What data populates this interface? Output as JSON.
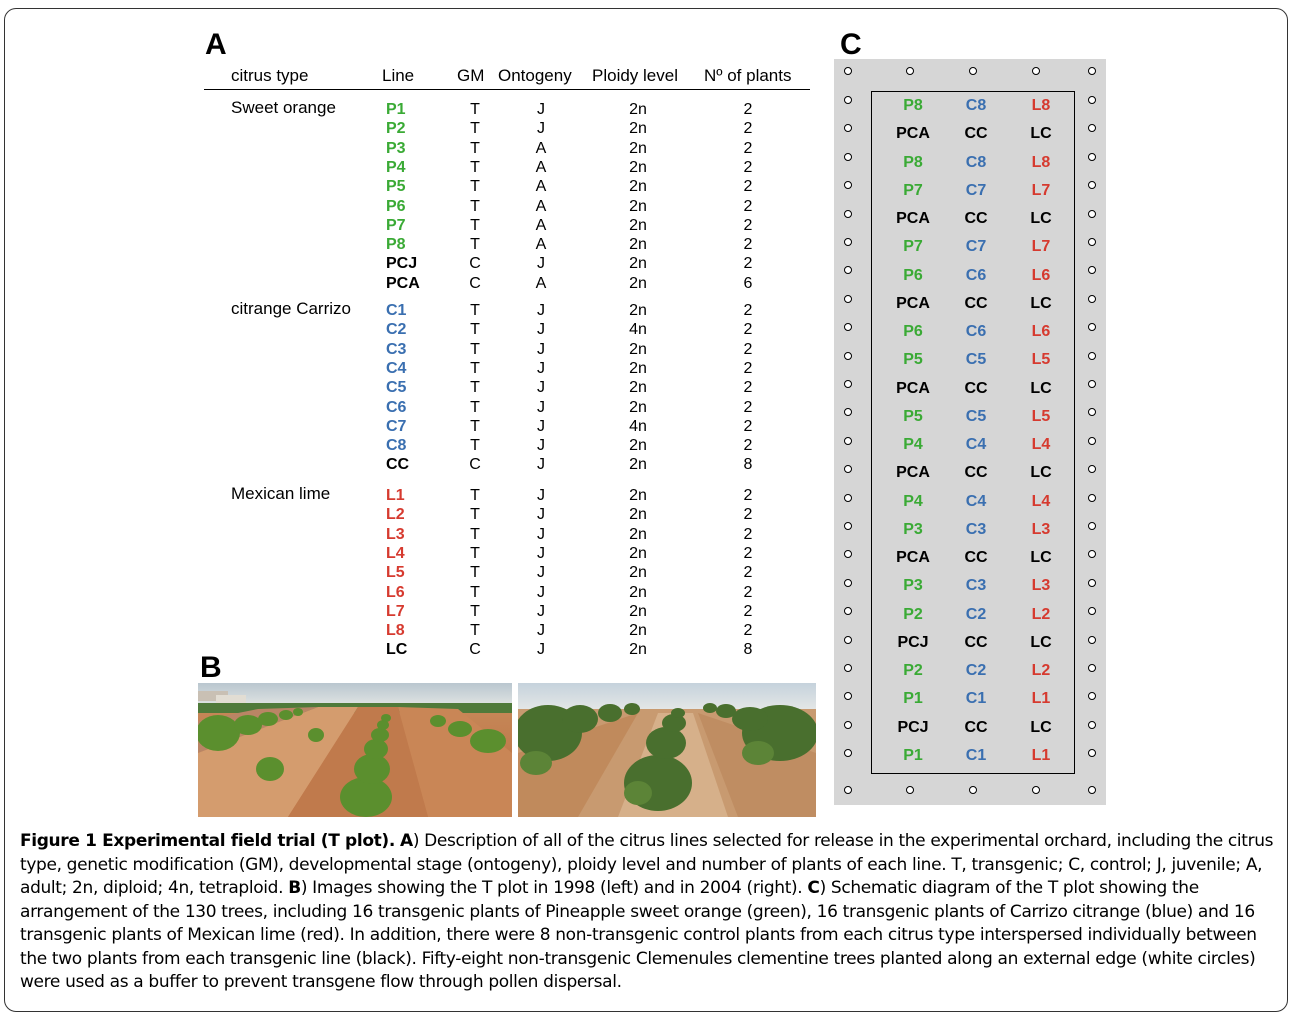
{
  "panels": {
    "a": "A",
    "b": "B",
    "c": "C"
  },
  "colors": {
    "sweet_orange": "#3aaa35",
    "carrizo": "#3a6fb0",
    "lime": "#d63a2f",
    "control": "#000000",
    "plot_bg": "#d6d6d6"
  },
  "table": {
    "headers": [
      "citrus type",
      "Line",
      "GM",
      "Ontogeny",
      "Ploidy level",
      "Nº of plants"
    ],
    "groups": [
      {
        "citrus_type": "Sweet orange",
        "color": "sweet_orange",
        "rows": [
          {
            "line": "P1",
            "gm": "T",
            "ontogeny": "J",
            "ploidy": "2n",
            "plants": "2",
            "transgenic": true
          },
          {
            "line": "P2",
            "gm": "T",
            "ontogeny": "J",
            "ploidy": "2n",
            "plants": "2",
            "transgenic": true
          },
          {
            "line": "P3",
            "gm": "T",
            "ontogeny": "A",
            "ploidy": "2n",
            "plants": "2",
            "transgenic": true
          },
          {
            "line": "P4",
            "gm": "T",
            "ontogeny": "A",
            "ploidy": "2n",
            "plants": "2",
            "transgenic": true
          },
          {
            "line": "P5",
            "gm": "T",
            "ontogeny": "A",
            "ploidy": "2n",
            "plants": "2",
            "transgenic": true
          },
          {
            "line": "P6",
            "gm": "T",
            "ontogeny": "A",
            "ploidy": "2n",
            "plants": "2",
            "transgenic": true
          },
          {
            "line": "P7",
            "gm": "T",
            "ontogeny": "A",
            "ploidy": "2n",
            "plants": "2",
            "transgenic": true
          },
          {
            "line": "P8",
            "gm": "T",
            "ontogeny": "A",
            "ploidy": "2n",
            "plants": "2",
            "transgenic": true
          },
          {
            "line": "PCJ",
            "gm": "C",
            "ontogeny": "J",
            "ploidy": "2n",
            "plants": "2",
            "transgenic": false
          },
          {
            "line": "PCA",
            "gm": "C",
            "ontogeny": "A",
            "ploidy": "2n",
            "plants": "6",
            "transgenic": false
          }
        ]
      },
      {
        "citrus_type": "citrange Carrizo",
        "color": "carrizo",
        "rows": [
          {
            "line": "C1",
            "gm": "T",
            "ontogeny": "J",
            "ploidy": "2n",
            "plants": "2",
            "transgenic": true
          },
          {
            "line": "C2",
            "gm": "T",
            "ontogeny": "J",
            "ploidy": "4n",
            "plants": "2",
            "transgenic": true
          },
          {
            "line": "C3",
            "gm": "T",
            "ontogeny": "J",
            "ploidy": "2n",
            "plants": "2",
            "transgenic": true
          },
          {
            "line": "C4",
            "gm": "T",
            "ontogeny": "J",
            "ploidy": "2n",
            "plants": "2",
            "transgenic": true
          },
          {
            "line": "C5",
            "gm": "T",
            "ontogeny": "J",
            "ploidy": "2n",
            "plants": "2",
            "transgenic": true
          },
          {
            "line": "C6",
            "gm": "T",
            "ontogeny": "J",
            "ploidy": "2n",
            "plants": "2",
            "transgenic": true
          },
          {
            "line": "C7",
            "gm": "T",
            "ontogeny": "J",
            "ploidy": "4n",
            "plants": "2",
            "transgenic": true
          },
          {
            "line": "C8",
            "gm": "T",
            "ontogeny": "J",
            "ploidy": "2n",
            "plants": "2",
            "transgenic": true
          },
          {
            "line": "CC",
            "gm": "C",
            "ontogeny": "J",
            "ploidy": "2n",
            "plants": "8",
            "transgenic": false
          }
        ]
      },
      {
        "citrus_type": "Mexican lime",
        "color": "lime",
        "rows": [
          {
            "line": "L1",
            "gm": "T",
            "ontogeny": "J",
            "ploidy": "2n",
            "plants": "2",
            "transgenic": true
          },
          {
            "line": "L2",
            "gm": "T",
            "ontogeny": "J",
            "ploidy": "2n",
            "plants": "2",
            "transgenic": true
          },
          {
            "line": "L3",
            "gm": "T",
            "ontogeny": "J",
            "ploidy": "2n",
            "plants": "2",
            "transgenic": true
          },
          {
            "line": "L4",
            "gm": "T",
            "ontogeny": "J",
            "ploidy": "2n",
            "plants": "2",
            "transgenic": true
          },
          {
            "line": "L5",
            "gm": "T",
            "ontogeny": "J",
            "ploidy": "2n",
            "plants": "2",
            "transgenic": true
          },
          {
            "line": "L6",
            "gm": "T",
            "ontogeny": "J",
            "ploidy": "2n",
            "plants": "2",
            "transgenic": true
          },
          {
            "line": "L7",
            "gm": "T",
            "ontogeny": "J",
            "ploidy": "2n",
            "plants": "2",
            "transgenic": true
          },
          {
            "line": "L8",
            "gm": "T",
            "ontogeny": "J",
            "ploidy": "2n",
            "plants": "2",
            "transgenic": true
          },
          {
            "line": "LC",
            "gm": "C",
            "ontogeny": "J",
            "ploidy": "2n",
            "plants": "8",
            "transgenic": false
          }
        ]
      }
    ]
  },
  "plot_rows": [
    [
      "P8",
      "C8",
      "L8"
    ],
    [
      "PCA",
      "CC",
      "LC"
    ],
    [
      "P8",
      "C8",
      "L8"
    ],
    [
      "P7",
      "C7",
      "L7"
    ],
    [
      "PCA",
      "CC",
      "LC"
    ],
    [
      "P7",
      "C7",
      "L7"
    ],
    [
      "P6",
      "C6",
      "L6"
    ],
    [
      "PCA",
      "CC",
      "LC"
    ],
    [
      "P6",
      "C6",
      "L6"
    ],
    [
      "P5",
      "C5",
      "L5"
    ],
    [
      "PCA",
      "CC",
      "LC"
    ],
    [
      "P5",
      "C5",
      "L5"
    ],
    [
      "P4",
      "C4",
      "L4"
    ],
    [
      "PCA",
      "CC",
      "LC"
    ],
    [
      "P4",
      "C4",
      "L4"
    ],
    [
      "P3",
      "C3",
      "L3"
    ],
    [
      "PCA",
      "CC",
      "LC"
    ],
    [
      "P3",
      "C3",
      "L3"
    ],
    [
      "P2",
      "C2",
      "L2"
    ],
    [
      "PCJ",
      "CC",
      "LC"
    ],
    [
      "P2",
      "C2",
      "L2"
    ],
    [
      "P1",
      "C1",
      "L1"
    ],
    [
      "PCJ",
      "CC",
      "LC"
    ],
    [
      "P1",
      "C1",
      "L1"
    ]
  ],
  "caption": {
    "title": "Figure 1 Experimental field trial (T plot).",
    "a_label": "A",
    "a_text": ") Description of all of the citrus lines selected for release in the experimental orchard, including the citrus type, genetic modification (GM), developmental stage (ontogeny), ploidy level and number of plants of each line. T, transgenic; C, control; J, juvenile; A, adult; 2n, diploid; 4n, tetraploid.",
    "b_label": "B",
    "b_text": ") Images showing the T plot in 1998 (left) and in 2004 (right).",
    "c_label": "C",
    "c_text": ") Schematic diagram of the T plot showing the arrangement of the 130 trees, including 16 transgenic plants of Pineapple sweet orange (green), 16 transgenic plants of Carrizo citrange (blue) and 16 transgenic plants of Mexican lime (red). In addition, there were 8 non-transgenic control plants from each citrus type interspersed individually between the two plants from each transgenic line (black). Fifty-eight non-transgenic Clemenules clementine trees planted along an external edge (white circles) were used as a buffer to prevent transgene flow through pollen dispersal."
  }
}
